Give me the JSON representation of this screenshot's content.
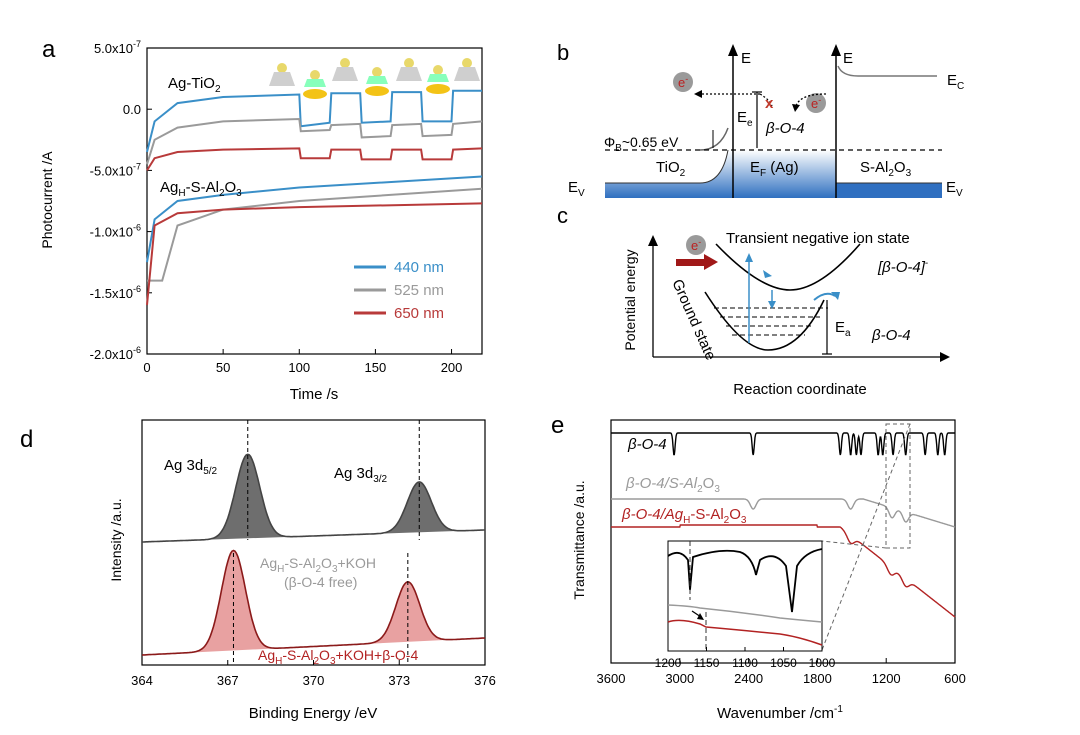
{
  "panels": {
    "a": {
      "letter": "a",
      "ylabel": "Photocurrent /A",
      "xlabel": "Time /s",
      "yticks": [
        {
          "v": 5e-07,
          "m": "5.0x10",
          "e": "-7"
        },
        {
          "v": 0,
          "m": "0.0",
          "e": ""
        },
        {
          "v": -5e-07,
          "m": "-5.0x10",
          "e": "-7"
        },
        {
          "v": -1e-06,
          "m": "-1.0x10",
          "e": "-6"
        },
        {
          "v": -1.5e-06,
          "m": "-1.5x10",
          "e": "-6"
        },
        {
          "v": -2e-06,
          "m": "-2.0x10",
          "e": "-6"
        }
      ],
      "xticks": [
        0,
        50,
        100,
        150,
        200
      ],
      "label_top": {
        "main": "Ag-TiO",
        "sub": "2"
      },
      "label_bottom": {
        "pre": "Ag",
        "sub": "H",
        "post": "-S-Al",
        "sub2": "2",
        "post2": "O",
        "sub3": "3"
      },
      "legend": [
        {
          "label": "440 nm",
          "color": "#3a8fc8"
        },
        {
          "label": "525 nm",
          "color": "#9a9a9a"
        },
        {
          "label": "650 nm",
          "color": "#b83a3a"
        }
      ]
    },
    "b": {
      "letter": "b",
      "axis_E": "E",
      "Ec": {
        "main": "E",
        "sub": "C"
      },
      "Ev_left": {
        "main": "E",
        "sub": "V"
      },
      "Ev_right": {
        "main": "E",
        "sub": "V"
      },
      "Ee": {
        "main": "E",
        "sub": "e"
      },
      "barrier": {
        "main": "Φ",
        "sub": "B",
        "post": "~0.65 eV"
      },
      "tio2": {
        "main": "TiO",
        "sub": "2"
      },
      "ef": {
        "main": "E",
        "sub": "F",
        "post": " (Ag)"
      },
      "sal2o3": {
        "pre": "S-Al",
        "sub": "2",
        "mid": "O",
        "sub2": "3"
      },
      "beta": "β-O-4",
      "electron": "e",
      "electron_sup": "-",
      "cross": "x"
    },
    "c": {
      "letter": "c",
      "ylabel": "Potential energy",
      "xlabel": "Reaction coordinate",
      "upper_state": "Transient negative ion state",
      "ion": "[β-O-4]",
      "ion_sup": "-",
      "ground": "Ground state",
      "ea": {
        "main": "E",
        "sub": "a"
      },
      "beta": "β-O-4",
      "electron": "e",
      "electron_sup": "-"
    },
    "d": {
      "letter": "d",
      "ylabel": "Intensity /a.u.",
      "xlabel": "Binding Energy /eV",
      "xticks": [
        364,
        367,
        370,
        373,
        376
      ],
      "peak1": {
        "main": "Ag 3d",
        "sub": "5/2"
      },
      "peak2": {
        "main": "Ag 3d",
        "sub": "3/2"
      },
      "label_gray_1": {
        "pre": "Ag",
        "sub": "H",
        "mid": "-S-Al",
        "sub2": "2",
        "mid2": "O",
        "sub3": "3",
        "post": "+KOH"
      },
      "label_gray_2": "(β-O-4 free)",
      "label_red": {
        "pre": "Ag",
        "sub": "H",
        "mid": "-S-Al",
        "sub2": "2",
        "mid2": "O",
        "sub3": "3",
        "post": "+KOH+β-O-4"
      },
      "colors": {
        "gray": "#6e6e6e",
        "red": "#e8a1a1"
      }
    },
    "e": {
      "letter": "e",
      "ylabel": "Transmittance /a.u.",
      "xlabel": "Wavenumber /cm",
      "xlabel_sup": "-1",
      "xticks": [
        3600,
        3000,
        2400,
        1800,
        1200,
        600
      ],
      "inset_xticks": [
        1200,
        1150,
        1100,
        1050,
        1000
      ],
      "trace1": "β-O-4",
      "trace2": {
        "pre": "β-O-4/S-Al",
        "sub": "2",
        "mid": "O",
        "sub2": "3"
      },
      "trace3": {
        "pre": "β-O-4/Ag",
        "sub": "H",
        "mid": "-S-Al",
        "sub2": "2",
        "mid2": "O",
        "sub3": "3"
      }
    }
  },
  "chart_data": [
    {
      "type": "line",
      "panel": "a",
      "xlabel": "Time /s",
      "ylabel": "Photocurrent /A",
      "xlim": [
        0,
        220
      ],
      "ylim": [
        -2e-06,
        5e-07
      ],
      "series": [
        {
          "name": "440 nm",
          "group": "Ag-TiO2",
          "x": [
            0,
            5,
            20,
            50,
            100,
            101,
            120,
            121,
            140,
            141,
            160,
            161,
            180,
            181,
            200,
            201,
            220
          ],
          "y": [
            -3.5e-07,
            -1e-07,
            5e-08,
            1e-07,
            1.2e-07,
            -1.4e-07,
            -1.1e-07,
            1.3e-07,
            1.3e-07,
            -1.1e-07,
            -1e-07,
            1.4e-07,
            1.4e-07,
            -1e-07,
            -1e-07,
            1.5e-07,
            1.5e-07
          ]
        },
        {
          "name": "525 nm",
          "group": "Ag-TiO2",
          "x": [
            0,
            5,
            20,
            50,
            100,
            101,
            120,
            121,
            140,
            141,
            160,
            161,
            180,
            181,
            200,
            201,
            220
          ],
          "y": [
            -4.5e-07,
            -2.5e-07,
            -1.5e-07,
            -1e-07,
            -8e-08,
            -1.8e-07,
            -1.7e-07,
            -1.3e-07,
            -1.2e-07,
            -2.3e-07,
            -2.2e-07,
            -1.3e-07,
            -1.2e-07,
            -2.2e-07,
            -2.1e-07,
            -1.2e-07,
            -1e-07
          ]
        },
        {
          "name": "650 nm",
          "group": "Ag-TiO2",
          "x": [
            0,
            5,
            20,
            50,
            100,
            101,
            120,
            121,
            140,
            141,
            160,
            161,
            180,
            181,
            200,
            201,
            220
          ],
          "y": [
            -5e-07,
            -4e-07,
            -3.5e-07,
            -3.3e-07,
            -3.2e-07,
            -4e-07,
            -4e-07,
            -3.3e-07,
            -3.3e-07,
            -4.1e-07,
            -4.1e-07,
            -3.3e-07,
            -3.3e-07,
            -4.1e-07,
            -4.1e-07,
            -3.3e-07,
            -3.2e-07
          ]
        },
        {
          "name": "440 nm",
          "group": "AgH-S-Al2O3",
          "x": [
            0,
            5,
            20,
            50,
            100,
            220
          ],
          "y": [
            -1.25e-06,
            -9e-07,
            -7.5e-07,
            -7e-07,
            -6.4e-07,
            -5.5e-07
          ]
        },
        {
          "name": "525 nm",
          "group": "AgH-S-Al2O3",
          "x": [
            0,
            10,
            20,
            50,
            100,
            220
          ],
          "y": [
            -1.4e-06,
            -1.4e-06,
            -9.5e-07,
            -8.2e-07,
            -7.5e-07,
            -6.5e-07
          ]
        },
        {
          "name": "650 nm",
          "group": "AgH-S-Al2O3",
          "x": [
            0,
            5,
            20,
            50,
            100,
            220
          ],
          "y": [
            -1.6e-06,
            -9.5e-07,
            -8.5e-07,
            -8.2e-07,
            -8e-07,
            -7.7e-07
          ]
        }
      ]
    },
    {
      "type": "line",
      "panel": "d",
      "xlabel": "Binding Energy /eV",
      "ylabel": "Intensity /a.u.",
      "xlim": [
        364,
        376
      ],
      "series": [
        {
          "name": "AgH-S-Al2O3+KOH (β-O-4 free)",
          "peaks": [
            {
              "center": 367.7,
              "height": 1.0
            },
            {
              "center": 373.7,
              "height": 0.6
            }
          ]
        },
        {
          "name": "AgH-S-Al2O3+KOH+β-O-4",
          "peaks": [
            {
              "center": 367.2,
              "height": 1.0
            },
            {
              "center": 373.3,
              "height": 0.6
            }
          ]
        }
      ]
    },
    {
      "type": "line",
      "panel": "e",
      "xlabel": "Wavenumber /cm-1",
      "ylabel": "Transmittance /a.u.",
      "xlim": [
        3600,
        600
      ],
      "series": [
        {
          "name": "β-O-4",
          "bands": [
            3050,
            2360,
            1600,
            1510,
            1460,
            1420,
            1270,
            1230,
            1140,
            1030,
            860,
            750,
            690
          ]
        },
        {
          "name": "β-O-4/S-Al2O3",
          "bands": [
            2360,
            1510,
            1150,
            1030
          ]
        },
        {
          "name": "β-O-4/AgH-S-Al2O3",
          "bands": [
            1510,
            1160,
            1030
          ]
        }
      ]
    }
  ]
}
